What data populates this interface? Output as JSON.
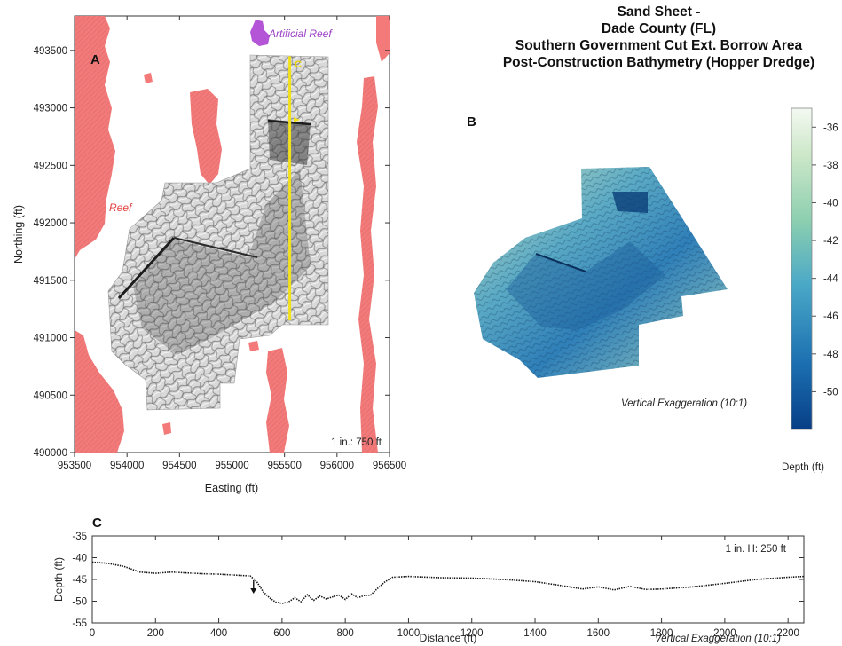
{
  "title": {
    "lines": [
      "Sand Sheet -",
      "Dade County (FL)",
      "Southern Government Cut Ext. Borrow Area",
      "Post-Construction Bathymetry (Hopper Dredge)"
    ]
  },
  "colors": {
    "reef": "#f47a7a",
    "artificial_reef": "#b355d6",
    "profile_line": "#f2e21b",
    "depth_shallow": "#eef5ea",
    "depth_mid": "#6bbfb9",
    "depth_deep": "#083f86"
  },
  "chart_data": [
    {
      "type": "map",
      "panel_label": "A",
      "xlabel": "Easting (ft)",
      "ylabel": "Northing (ft)",
      "xlim": [
        953500,
        956500
      ],
      "ylim": [
        490000,
        493800
      ],
      "xticks": [
        "953500",
        "954000",
        "954500",
        "955000",
        "955500",
        "956000",
        "956500"
      ],
      "yticks": [
        "490000",
        "490500",
        "491000",
        "491500",
        "492000",
        "492500",
        "493000",
        "493500"
      ],
      "annotations": {
        "reef": "Reef",
        "artificial_reef": "Artificial Reef",
        "profile": "C",
        "scale": "1 in.: 750 ft"
      },
      "profile_line": {
        "x": 955550,
        "y": [
          491150,
          493450
        ]
      }
    },
    {
      "type": "surface-3d",
      "panel_label": "B",
      "note": "Vertical Exaggeration (10:1)",
      "colorbar": {
        "label": "Depth (ft)",
        "range": [
          -52,
          -35
        ],
        "ticks": [
          -36,
          -38,
          -40,
          -42,
          -44,
          -46,
          -48,
          -50
        ]
      }
    },
    {
      "type": "line",
      "panel_label": "C",
      "xlabel": "Distance (ft)",
      "ylabel": "Depth (ft)",
      "xlim": [
        0,
        2250
      ],
      "ylim": [
        -55,
        -35
      ],
      "xticks": [
        0,
        200,
        400,
        600,
        800,
        1000,
        1200,
        1400,
        1600,
        1800,
        2000,
        2200
      ],
      "yticks": [
        -35,
        -40,
        -45,
        -50,
        -55
      ],
      "scale_note": "1 in. H: 250 ft",
      "exaggeration_note": "Vertical Exaggeration (10:1)",
      "marker_x": 510,
      "series": [
        {
          "x": [
            0,
            50,
            100,
            150,
            200,
            250,
            300,
            350,
            400,
            450,
            500,
            520,
            540,
            560,
            580,
            600,
            620,
            640,
            660,
            680,
            700,
            720,
            740,
            760,
            780,
            800,
            820,
            840,
            860,
            880,
            900,
            925,
            950,
            1000,
            1100,
            1200,
            1300,
            1400,
            1500,
            1550,
            1600,
            1650,
            1700,
            1750,
            1800,
            1900,
            2000,
            2100,
            2200,
            2250
          ],
          "y": [
            -41,
            -41.3,
            -42,
            -43.3,
            -43.6,
            -43.3,
            -43.5,
            -43.7,
            -43.8,
            -44,
            -44.2,
            -45.5,
            -47.8,
            -49.2,
            -50.2,
            -50.5,
            -50.2,
            -49.2,
            -50.1,
            -48.5,
            -49.8,
            -48.8,
            -49.5,
            -49,
            -48.6,
            -49.6,
            -48.3,
            -49.2,
            -48.7,
            -48.6,
            -47.2,
            -45.6,
            -44.5,
            -44.3,
            -44.6,
            -44.7,
            -45,
            -45.5,
            -46.6,
            -47.2,
            -46.7,
            -47.4,
            -46.6,
            -47.3,
            -47.2,
            -46.7,
            -45.9,
            -45,
            -44.5,
            -44.3
          ]
        }
      ]
    }
  ]
}
